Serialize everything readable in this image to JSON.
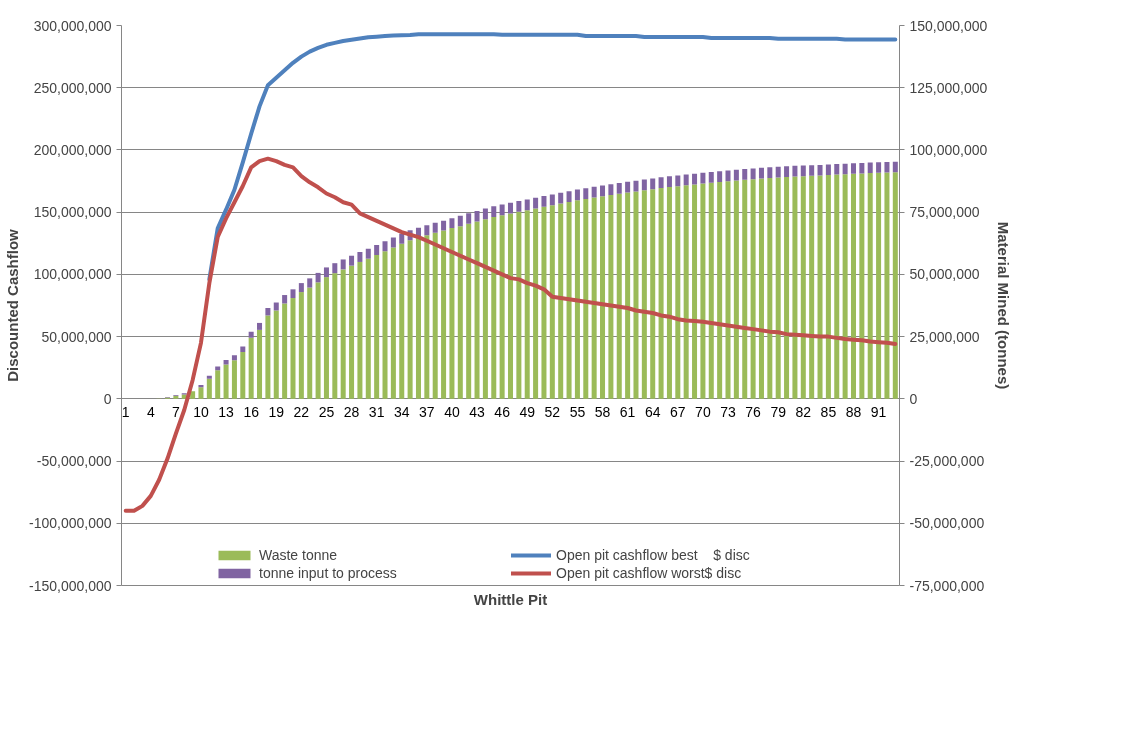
{
  "chart_data": {
    "type": "bar",
    "stacked": true,
    "xlabel": "Whittle Pit",
    "ylabel": "Discounted Cashflow",
    "y2label": "Material Mined (tonnes)",
    "categories": [
      "1",
      null,
      null,
      "4",
      null,
      null,
      "7",
      null,
      null,
      "10",
      null,
      null,
      "13",
      null,
      null,
      "16",
      null,
      null,
      "19",
      null,
      null,
      "22",
      null,
      null,
      "25",
      null,
      null,
      "28",
      null,
      null,
      "31",
      null,
      null,
      "34",
      null,
      null,
      "37",
      null,
      null,
      "40",
      null,
      null,
      "43",
      null,
      null,
      "46",
      null,
      null,
      "49",
      null,
      null,
      "52",
      null,
      null,
      "55",
      null,
      null,
      "58",
      null,
      null,
      "61",
      null,
      null,
      "64",
      null,
      null,
      "67",
      null,
      null,
      "70",
      null,
      null,
      "73",
      null,
      null,
      "76",
      null,
      null,
      "79",
      null,
      null,
      "82",
      null,
      null,
      "85",
      null,
      null,
      "88",
      null,
      null,
      "91",
      null,
      null
    ],
    "series": [
      {
        "name": "Waste tonne",
        "axis": "y2",
        "color": "#9bbb59",
        "values": [
          0,
          0,
          0,
          null,
          200000.0,
          500000.0,
          1200000.0,
          1700000.0,
          3000000.0,
          4700000.0,
          8100000.0,
          11500000.0,
          13800000.0,
          15500000.0,
          18800000.0,
          24500000.0,
          27700000.0,
          33500000.0,
          35500000.0,
          38300000.0,
          40500000.0,
          42900000.0,
          44700000.0,
          46800000.0,
          48900000.0,
          50500000.0,
          52000000.0,
          53500000.0,
          55000000.0,
          56300000.0,
          57800000.0,
          59300000.0,
          60800000.0,
          62300000.0,
          63700000.0,
          64700000.0,
          65700000.0,
          66700000.0,
          67600000.0,
          68600000.0,
          69300000.0,
          70300000.0,
          71200000.0,
          72200000.0,
          73100000.0,
          73800000.0,
          74500000.0,
          75200000.0,
          75800000.0,
          76500000.0,
          77200000.0,
          77800000.0,
          78500000.0,
          79100000.0,
          79800000.0,
          80300000.0,
          80900000.0,
          81400000.0,
          81900000.0,
          82400000.0,
          82900000.0,
          83300000.0,
          83800000.0,
          84200000.0,
          84700000.0,
          85100000.0,
          85400000.0,
          85800000.0,
          86100000.0,
          86500000.0,
          86800000.0,
          87100000.0,
          87400000.0,
          87700000.0,
          88000000.0,
          88200000.0,
          88500000.0,
          88700000.0,
          88900000.0,
          89100000.0,
          89300000.0,
          89400000.0,
          89600000.0,
          89700000.0,
          89900000.0,
          90100000.0,
          90200000.0,
          90400000.0,
          90500000.0,
          90700000.0,
          90800000.0,
          90900000.0,
          91000000.0
        ]
      },
      {
        "name": "tonne input to process",
        "axis": "y2",
        "color": "#8064a2",
        "values": [
          0,
          0,
          0,
          0,
          100000.0,
          200000.0,
          300000.0,
          500000.0,
          null,
          900000.0,
          1200000.0,
          1500000.0,
          1800000.0,
          2000000.0,
          2200000.0,
          2500000.0,
          2800000.0,
          3000000.0,
          3200000.0,
          3400000.0,
          3500000.0,
          3600000.0,
          3700000.0,
          3800000.0,
          3900000.0,
          4000000.0,
          4000000.0,
          4000000.0,
          4000000.0,
          4000000.0,
          4000000.0,
          4000000.0,
          4000000.0,
          4000000.0,
          4000000.0,
          4000000.0,
          4000000.0,
          4000000.0,
          4000000.0,
          4000000.0,
          4300000.0,
          4300000.0,
          4300000.0,
          4300000.0,
          4300000.0,
          4300000.0,
          4300000.0,
          4300000.0,
          4300000.0,
          4300000.0,
          4300000.0,
          4300000.0,
          4300000.0,
          4300000.0,
          4300000.0,
          4300000.0,
          4300000.0,
          4300000.0,
          4300000.0,
          4300000.0,
          4300000.0,
          4300000.0,
          4300000.0,
          4300000.0,
          4300000.0,
          4300000.0,
          4300000.0,
          4300000.0,
          4300000.0,
          4300000.0,
          4300000.0,
          4300000.0,
          4300000.0,
          4300000.0,
          4300000.0,
          4300000.0,
          4300000.0,
          4300000.0,
          4300000.0,
          4300000.0,
          4300000.0,
          4300000.0,
          4300000.0,
          4300000.0,
          4300000.0,
          4300000.0,
          4300000.0,
          4300000.0,
          4300000.0,
          4300000.0,
          4300000.0,
          4300000.0,
          4300000.0
        ]
      },
      {
        "name": "Open pit cashflow best    $ disc",
        "type": "line",
        "axis": "y",
        "color": "#4f81bd",
        "values": [
          null,
          null,
          null,
          null,
          null,
          null,
          null,
          null,
          null,
          null,
          96000000.0,
          137000000.0,
          152000000.0,
          168000000.0,
          190000000.0,
          213000000.0,
          235000000.0,
          252000000.0,
          258000000.0,
          264000000.0,
          270000000.0,
          275000000.0,
          279000000.0,
          282000000.0,
          284500000.0,
          286000000.0,
          287500000.0,
          288500000.0,
          289500000.0,
          290500000.0,
          291000000.0,
          291500000.0,
          292000000.0,
          292200000.0,
          292400000.0,
          293000000.0,
          293000000.0,
          293000000.0,
          293000000.0,
          293000000.0,
          293000000.0,
          293000000.0,
          293000000.0,
          293000000.0,
          293000000.0,
          292500000.0,
          292500000.0,
          292500000.0,
          292500000.0,
          292500000.0,
          292500000.0,
          292500000.0,
          292500000.0,
          292500000.0,
          292500000.0,
          291500000.0,
          291500000.0,
          291500000.0,
          291500000.0,
          291500000.0,
          291500000.0,
          291500000.0,
          290800000.0,
          290800000.0,
          290800000.0,
          290800000.0,
          290800000.0,
          290800000.0,
          290800000.0,
          290800000.0,
          290000000.0,
          290000000.0,
          290000000.0,
          290000000.0,
          290000000.0,
          290000000.0,
          290000000.0,
          290000000.0,
          289300000.0,
          289300000.0,
          289300000.0,
          289300000.0,
          289300000.0,
          289300000.0,
          289300000.0,
          289300000.0,
          288700000.0,
          288700000.0,
          288700000.0,
          288700000.0,
          288700000.0,
          288700000.0,
          288700000.0
        ]
      },
      {
        "name": "Open pit cashflow worst$ disc",
        "type": "line",
        "axis": "y",
        "color": "#c0504d",
        "values": [
          -90000000.0,
          -90000000.0,
          -86000000.0,
          -78000000.0,
          -65000000.0,
          -48000000.0,
          -28000000.0,
          -9000000.0,
          15000000.0,
          45000000.0,
          93000000.0,
          130000000.0,
          145000000.0,
          158000000.0,
          171000000.0,
          186000000.0,
          191000000.0,
          193000000.0,
          191000000.0,
          188000000.0,
          186000000.0,
          179000000.0,
          174000000.0,
          170000000.0,
          165000000.0,
          162000000.0,
          158000000.0,
          156000000.0,
          149000000.0,
          146000000.0,
          143000000.0,
          140000000.0,
          137000000.0,
          134000000.0,
          132000000.0,
          130000000.0,
          127000000.0,
          124000000.0,
          121000000.0,
          118000000.0,
          115000000.0,
          112000000.0,
          109000000.0,
          106000000.0,
          103000000.0,
          100000000.0,
          97000000.0,
          96000000.0,
          93000000.0,
          91000000.0,
          88000000.0,
          82000000.0,
          81000000.0,
          80000000.0,
          79000000.0,
          78000000.0,
          77000000.0,
          76000000.0,
          75000000.0,
          74000000.0,
          73000000.0,
          71000000.0,
          70000000.0,
          69000000.0,
          67000000.0,
          66000000.0,
          64000000.0,
          63000000.0,
          62500000.0,
          62000000.0,
          61000000.0,
          60000000.0,
          59000000.0,
          58000000.0,
          57000000.0,
          56000000.0,
          55000000.0,
          54000000.0,
          53500000.0,
          52000000.0,
          51500000.0,
          51000000.0,
          50500000.0,
          50000000.0,
          50000000.0,
          49000000.0,
          48000000.0,
          47500000.0,
          47000000.0,
          46000000.0,
          45500000.0,
          45000000.0,
          44000000.0
        ]
      }
    ],
    "ylim": [
      -150000000,
      300000000
    ],
    "yticks": [
      {
        "value": -150000000,
        "label": "-150,000,000"
      },
      {
        "value": -100000000,
        "label": "-100,000,000"
      },
      {
        "value": -50000000,
        "label": "-50,000,000"
      },
      0,
      {
        "value": 50000000,
        "label": "50,000,000"
      },
      {
        "value": 100000000,
        "label": "100,000,000"
      },
      {
        "value": 150000000,
        "label": "150,000,000"
      },
      {
        "value": 200000000,
        "label": "200,000,000"
      },
      {
        "value": 250000000,
        "label": "250,000,000"
      },
      {
        "value": 300000000,
        "label": "300,000,000"
      }
    ],
    "y2lim": [
      -75000000,
      150000000
    ],
    "y2ticks": [
      {
        "value": -75000000,
        "label": "-75,000,000"
      },
      {
        "value": -50000000,
        "label": "-50,000,000"
      },
      {
        "value": -25000000,
        "label": "-25,000,000"
      },
      0,
      {
        "value": 25000000,
        "label": "25,000,000"
      },
      {
        "value": 50000000,
        "label": "50,000,000"
      },
      {
        "value": 75000000,
        "label": "75,000,000"
      },
      {
        "value": 100000000,
        "label": "100,000,000"
      },
      {
        "value": 125000000,
        "label": "125,000,000"
      },
      {
        "value": 150000000,
        "label": "150,000,000"
      }
    ],
    "grid": "y",
    "legend": "bottom"
  }
}
